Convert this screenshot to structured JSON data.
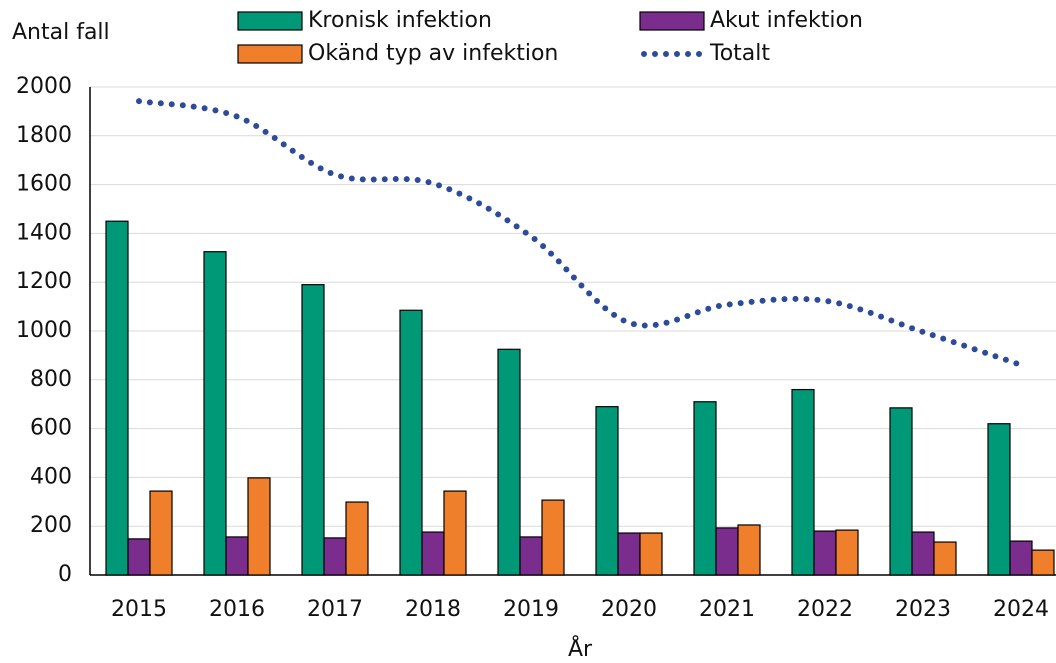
{
  "chart_data": {
    "type": "bar",
    "y_label": "Antal fall",
    "x_label": "År",
    "categories": [
      "2015",
      "2016",
      "2017",
      "2018",
      "2019",
      "2020",
      "2021",
      "2022",
      "2023",
      "2024"
    ],
    "series": [
      {
        "name": "Kronisk infektion",
        "color": "#009977",
        "values": [
          1450,
          1325,
          1190,
          1085,
          925,
          690,
          710,
          760,
          685,
          620
        ]
      },
      {
        "name": "Akut infektion",
        "color": "#7b2d8e",
        "values": [
          148,
          156,
          152,
          176,
          156,
          172,
          193,
          180,
          176,
          139
        ]
      },
      {
        "name": "Okänd typ av infektion",
        "color": "#f07f2b",
        "values": [
          344,
          398,
          299,
          344,
          307,
          172,
          205,
          184,
          135,
          102
        ]
      },
      {
        "name": "Totalt",
        "color": "#2c4b9a",
        "type": "line",
        "values": [
          1942,
          1879,
          1641,
          1605,
          1388,
          1034,
          1108,
          1124,
          996,
          861
        ]
      }
    ],
    "ylim": [
      0,
      2000
    ],
    "yticks": [
      0,
      200,
      400,
      600,
      800,
      1000,
      1200,
      1400,
      1600,
      1800,
      2000
    ],
    "grid": true
  }
}
